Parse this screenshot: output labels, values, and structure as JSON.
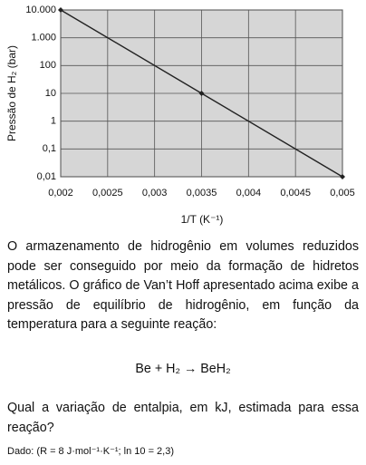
{
  "chart_data": {
    "type": "line",
    "y_label": "Pressão de H₂ (bar)",
    "x_label": "1/T  (K⁻¹)",
    "x": [
      0.002,
      0.0035,
      0.005
    ],
    "values": [
      10000,
      10,
      0.01
    ],
    "color": "#222222",
    "xlim": [
      0.002,
      0.005
    ],
    "xticks": [
      {
        "value": 0.002,
        "label": "0,002"
      },
      {
        "value": 0.0025,
        "label": "0,0025"
      },
      {
        "value": 0.003,
        "label": "0,003"
      },
      {
        "value": 0.0035,
        "label": "0,0035"
      },
      {
        "value": 0.004,
        "label": "0,004"
      },
      {
        "value": 0.0045,
        "label": "0,0045"
      },
      {
        "value": 0.005,
        "label": "0,005"
      }
    ],
    "ylim": [
      0.01,
      10000
    ],
    "yticks": [
      {
        "value": 0.01,
        "label": "0,01"
      },
      {
        "value": 0.1,
        "label": "0,1"
      },
      1,
      10,
      100,
      {
        "value": 1000,
        "label": "1.000"
      },
      {
        "value": 10000,
        "label": "10.000"
      }
    ],
    "log_y": true,
    "grid": true
  },
  "text": {
    "paragraph": "O armazenamento de hidrogênio em volumes reduzidos pode ser conseguido por meio da formação de hidretos metálicos. O gráfico de Van’t Hoff apresentado acima exibe a pressão de equilíbrio de hidrogênio, em função da temperatura para a seguinte reação:",
    "reaction": "Be  +  H₂  →  BeH₂",
    "question": "Qual a variação de entalpia, em kJ, estimada para essa reação?",
    "given": "Dado: (R = 8 J·mol⁻¹·K⁻¹; ln 10 = 2,3)"
  }
}
